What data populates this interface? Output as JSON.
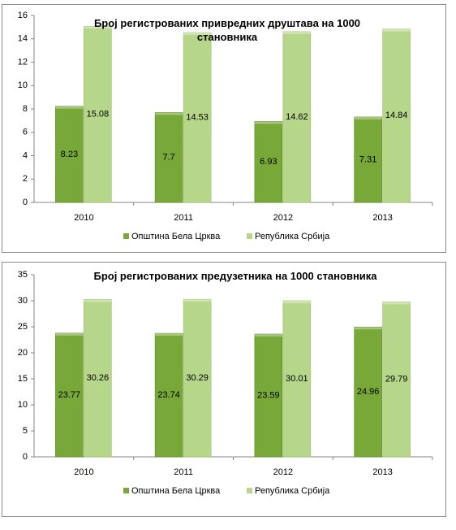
{
  "chart_data": [
    {
      "type": "bar",
      "title": "Број регистрованих привредних друштава на 1000 становника",
      "categories": [
        "2010",
        "2011",
        "2012",
        "2013"
      ],
      "series": [
        {
          "name": "Општина Бела Црква",
          "color": "#77a838",
          "values": [
            8.23,
            7.7,
            6.93,
            7.31
          ]
        },
        {
          "name": "Република Србија",
          "color": "#b6d68a",
          "values": [
            15.08,
            14.53,
            14.62,
            14.84
          ]
        }
      ],
      "ylim": [
        0,
        16
      ],
      "yticks": [
        0,
        2,
        4,
        6,
        8,
        10,
        12,
        14,
        16
      ],
      "legend": "bottom"
    },
    {
      "type": "bar",
      "title": "Број регистрованих предузетника на 1000 становника",
      "categories": [
        "2010",
        "2011",
        "2012",
        "2013"
      ],
      "series": [
        {
          "name": "Општина Бела Црква",
          "color": "#77a838",
          "values": [
            23.77,
            23.74,
            23.59,
            24.96
          ]
        },
        {
          "name": "Република Србија",
          "color": "#b6d68a",
          "values": [
            30.26,
            30.29,
            30.01,
            29.79
          ]
        }
      ],
      "ylim": [
        0,
        35
      ],
      "yticks": [
        0,
        5,
        10,
        15,
        20,
        25,
        30,
        35
      ],
      "legend": "bottom"
    }
  ]
}
